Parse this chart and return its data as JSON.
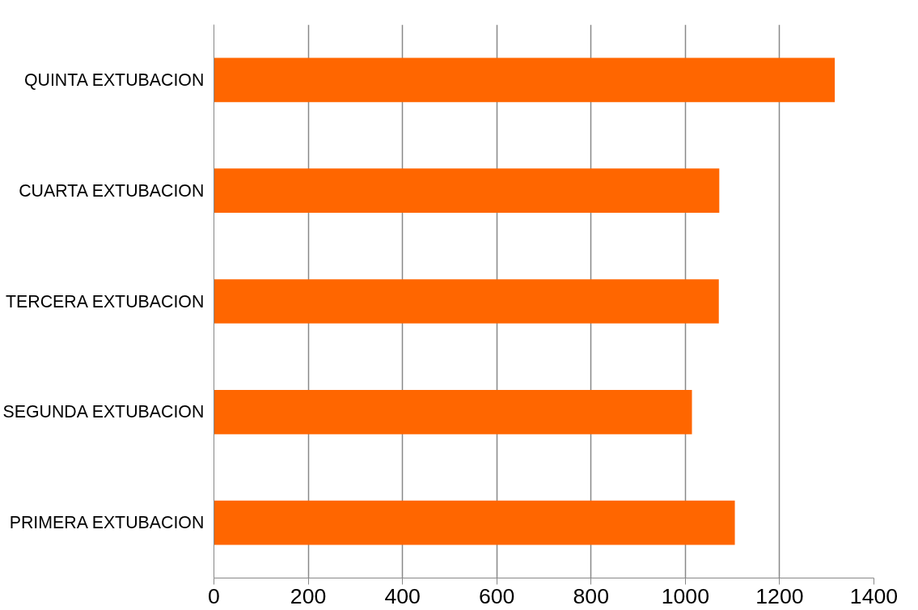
{
  "chart_data": {
    "type": "bar",
    "orientation": "horizontal",
    "categories": [
      "QUINTA EXTUBACION",
      "CUARTA EXTUBACION",
      "TERCERA EXTUBACION",
      "SEGUNDA EXTUBACION",
      "PRIMERA EXTUBACION"
    ],
    "values": [
      1317,
      1072,
      1071,
      1014,
      1105
    ],
    "color": "#ff6600",
    "xlim": [
      0,
      1400
    ],
    "xticks": [
      0,
      200,
      400,
      600,
      800,
      1000,
      1200,
      1400
    ],
    "grid": "x"
  }
}
